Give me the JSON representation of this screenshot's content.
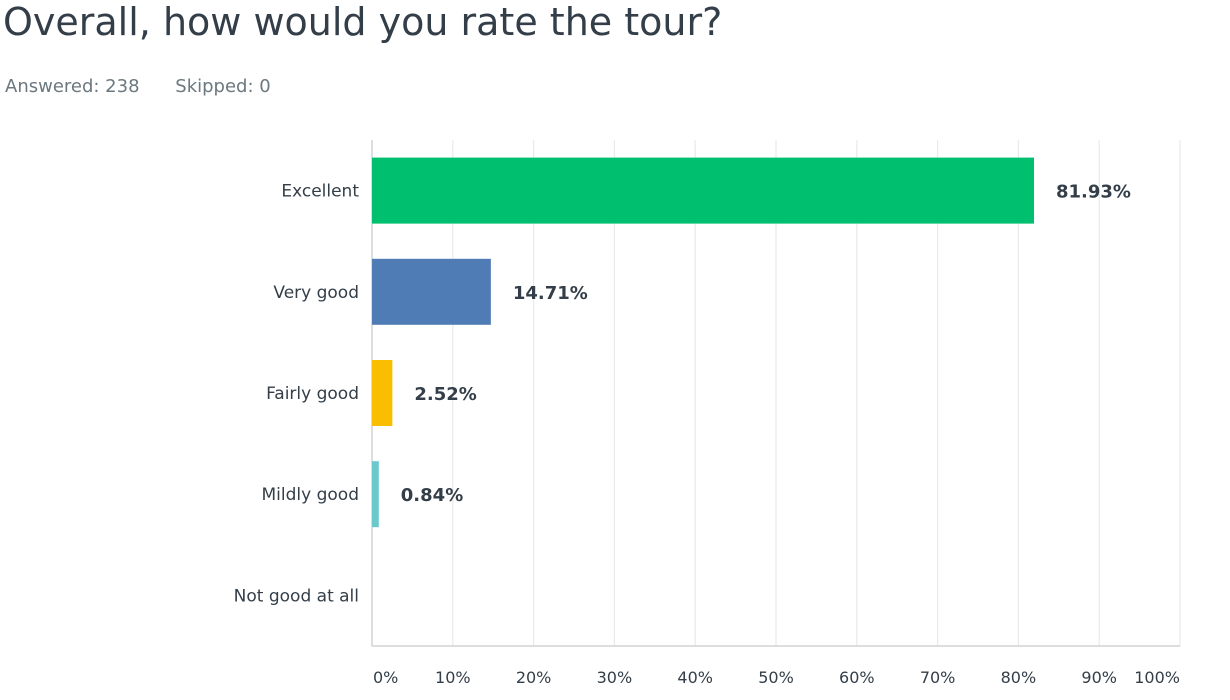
{
  "question": {
    "title": "Overall, how would you rate the tour?",
    "answered_label": "Answered: 238",
    "skipped_label": "Skipped: 0"
  },
  "chart_data": {
    "type": "bar",
    "orientation": "horizontal",
    "categories": [
      "Excellent",
      "Very good",
      "Fairly good",
      "Mildly good",
      "Not good at all"
    ],
    "values": [
      81.93,
      14.71,
      2.52,
      0.84,
      0
    ],
    "value_labels": [
      "81.93%",
      "14.71%",
      "2.52%",
      "0.84%",
      ""
    ],
    "colors": [
      "#00bf6f",
      "#507cb6",
      "#f9be00",
      "#6bc8cd",
      "#ff8b4f"
    ],
    "xlim": [
      0,
      100
    ],
    "x_ticks": [
      0,
      10,
      20,
      30,
      40,
      50,
      60,
      70,
      80,
      90,
      100
    ],
    "x_tick_labels": [
      "0%",
      "10%",
      "20%",
      "30%",
      "40%",
      "50%",
      "60%",
      "70%",
      "80%",
      "90%",
      "100%"
    ],
    "grid": true,
    "title": "",
    "xlabel": "",
    "ylabel": ""
  }
}
